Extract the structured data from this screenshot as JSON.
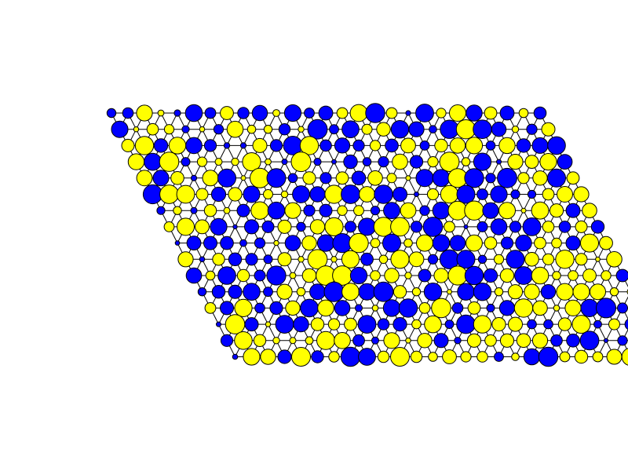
{
  "diagram": {
    "type": "lattice-network",
    "shape": "rhombus",
    "columns": 27,
    "rows": 16,
    "colors": {
      "blue": "#0000ff",
      "yellow": "#ffff00",
      "outline": "#000000",
      "edge": "#000000",
      "background": "#ffffff"
    },
    "seed": 11
  }
}
